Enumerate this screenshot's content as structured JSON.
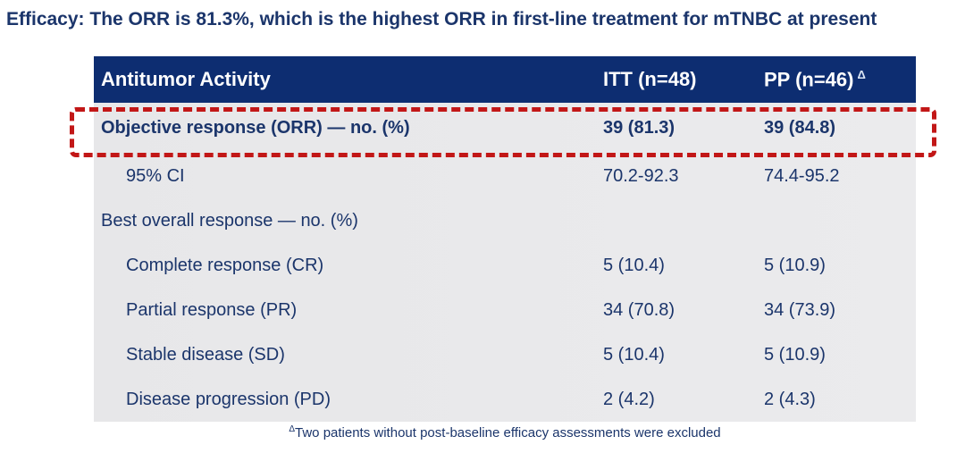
{
  "slide": {
    "title": "Efficacy: The ORR is 81.3%, which is the highest ORR in first-line treatment for mTNBC at present",
    "footnote": {
      "sup": "Δ",
      "text": "Two patients without post-baseline efficacy assessments were excluded"
    }
  },
  "table": {
    "header": {
      "col1": "Antitumor Activity",
      "col2": "ITT (n=48)",
      "col3": "PP (n=46)",
      "col3_sup": "Δ"
    },
    "rows": [
      {
        "label": "Objective response (ORR) — no. (%)",
        "itt": "39 (81.3)",
        "pp": "39 (84.8)",
        "emphasis": "bold-highlighted"
      },
      {
        "label": "95% CI",
        "itt": "70.2-92.3",
        "pp": "74.4-95.2",
        "emphasis": "indent"
      },
      {
        "label": "Best overall response — no. (%)",
        "itt": "",
        "pp": "",
        "emphasis": "none"
      },
      {
        "label": "Complete response (CR)",
        "itt": "5 (10.4)",
        "pp": "5 (10.9)",
        "emphasis": "indent"
      },
      {
        "label": "Partial response (PR)",
        "itt": "34 (70.8)",
        "pp": "34 (73.9)",
        "emphasis": "indent"
      },
      {
        "label": "Stable disease (SD)",
        "itt": "5 (10.4)",
        "pp": "5 (10.9)",
        "emphasis": "indent"
      },
      {
        "label": "Disease progression (PD)",
        "itt": "2 (4.2)",
        "pp": "2 (4.3)",
        "emphasis": "indent"
      }
    ]
  },
  "colors": {
    "header_bg": "#0d2d71",
    "text_navy": "#1b356b",
    "row_bg": "#e9e9e9",
    "highlight_red": "#c21717"
  }
}
